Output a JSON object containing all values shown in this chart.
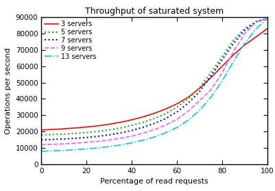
{
  "title": "Throughput of saturated system",
  "xlabel": "Percentage of read requests",
  "ylabel": "Operations per second",
  "xlim": [
    0,
    100
  ],
  "ylim": [
    0,
    90000
  ],
  "series": [
    {
      "label": "3 servers",
      "color": "#ff0000",
      "linestyle": "solid",
      "linewidth": 1.2,
      "x": [
        0,
        5,
        10,
        15,
        20,
        25,
        30,
        35,
        40,
        45,
        50,
        55,
        60,
        65,
        70,
        75,
        80,
        85,
        90,
        95,
        100
      ],
      "y": [
        21000,
        21300,
        21700,
        22200,
        22800,
        23500,
        24500,
        25700,
        27200,
        29000,
        31200,
        33800,
        37000,
        41000,
        46500,
        53000,
        60000,
        67000,
        73000,
        78000,
        83000
      ]
    },
    {
      "label": "5 servers",
      "color": "#00bb00",
      "linestyle": "dotted",
      "linewidth": 1.5,
      "x": [
        0,
        5,
        10,
        15,
        20,
        25,
        30,
        35,
        40,
        45,
        50,
        55,
        60,
        65,
        70,
        75,
        80,
        85,
        90,
        95,
        100
      ],
      "y": [
        18000,
        18200,
        18500,
        18900,
        19400,
        20100,
        21000,
        22200,
        23800,
        25700,
        28000,
        31000,
        35000,
        40000,
        47000,
        56000,
        66000,
        76000,
        83000,
        87500,
        89000
      ]
    },
    {
      "label": "7 servers",
      "color": "#0000dd",
      "linestyle": "dotted",
      "linewidth": 1.5,
      "x": [
        0,
        5,
        10,
        15,
        20,
        25,
        30,
        35,
        40,
        45,
        50,
        55,
        60,
        65,
        70,
        75,
        80,
        85,
        90,
        95,
        100
      ],
      "y": [
        15000,
        15200,
        15500,
        15900,
        16400,
        17100,
        18000,
        19200,
        20700,
        22600,
        25000,
        28000,
        32000,
        37500,
        44500,
        54000,
        64000,
        74000,
        82000,
        87000,
        89500
      ]
    },
    {
      "label": "9 servers",
      "color": "#ff55ff",
      "linestyle": "dashed",
      "linewidth": 1.2,
      "x": [
        0,
        5,
        10,
        15,
        20,
        25,
        30,
        35,
        40,
        45,
        50,
        55,
        60,
        65,
        70,
        75,
        80,
        85,
        90,
        95,
        100
      ],
      "y": [
        12000,
        12200,
        12500,
        12900,
        13400,
        14000,
        14800,
        15900,
        17200,
        19000,
        21200,
        24000,
        27500,
        32500,
        39000,
        45500,
        56000,
        69000,
        80000,
        87000,
        89500
      ]
    },
    {
      "label": "13 servers",
      "color": "#00cccc",
      "linestyle": "dashdot",
      "linewidth": 1.2,
      "x": [
        0,
        5,
        10,
        15,
        20,
        25,
        30,
        35,
        40,
        45,
        50,
        55,
        60,
        65,
        70,
        75,
        80,
        85,
        90,
        95,
        100
      ],
      "y": [
        8000,
        8200,
        8500,
        8900,
        9400,
        10000,
        10800,
        11800,
        13100,
        14700,
        16700,
        19300,
        22500,
        27000,
        33000,
        41000,
        51000,
        63000,
        74000,
        83000,
        89000
      ]
    }
  ],
  "xticks": [
    0,
    20,
    40,
    60,
    80,
    100
  ],
  "yticks": [
    0,
    10000,
    20000,
    30000,
    40000,
    50000,
    60000,
    70000,
    80000,
    90000
  ],
  "bg_color": "#ffffff",
  "plot_bg_color": "#ffffff"
}
